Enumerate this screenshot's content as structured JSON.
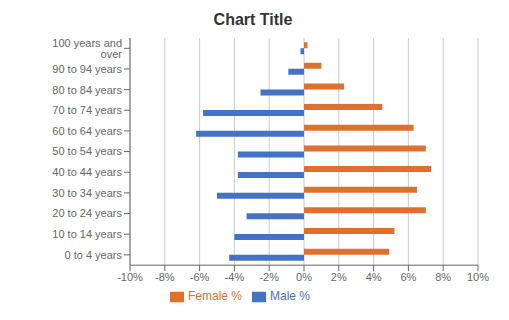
{
  "chart_data": {
    "type": "bar",
    "orientation": "horizontal",
    "title": "Chart Title",
    "categories": [
      "0 to 4 years",
      "10 to 14 years",
      "20 to 24 years",
      "30 to 34 years",
      "40 to 44 years",
      "50 to 54 years",
      "60 to 64 years",
      "70 to 74 years",
      "80 to 84 years",
      "90 to 94 years",
      "100 years and over"
    ],
    "series": [
      {
        "name": "Female %",
        "color": "#E07030",
        "values": [
          4.9,
          5.2,
          7.0,
          6.5,
          7.3,
          7.0,
          6.3,
          4.5,
          2.3,
          1.0,
          0.2
        ]
      },
      {
        "name": "Male %",
        "color": "#4472C4",
        "values": [
          -4.3,
          -4.0,
          -3.3,
          -5.0,
          -3.8,
          -3.8,
          -6.2,
          -5.8,
          -2.5,
          -0.9,
          -0.2
        ]
      }
    ],
    "xlim": [
      -10,
      10
    ],
    "xticks": [
      {
        "value": -10,
        "label": "-10%"
      },
      {
        "value": -8,
        "label": "-8%"
      },
      {
        "value": -6,
        "label": "-6%"
      },
      {
        "value": -4,
        "label": "-4%"
      },
      {
        "value": -2,
        "label": "-2%"
      },
      {
        "value": 0,
        "label": "0%"
      },
      {
        "value": 2,
        "label": "2%"
      },
      {
        "value": 4,
        "label": "4%"
      },
      {
        "value": 6,
        "label": "6%"
      },
      {
        "value": 8,
        "label": "8%"
      },
      {
        "value": 10,
        "label": "10%"
      }
    ],
    "grid": true,
    "legend": "bottom"
  }
}
